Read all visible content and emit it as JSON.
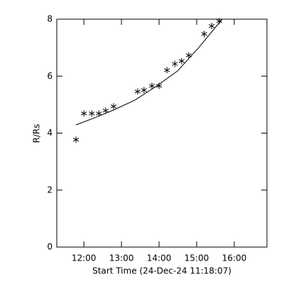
{
  "chart_data": {
    "type": "scatter",
    "xlabel": "Start Time (24-Dec-24 11:18:07)",
    "ylabel": "R/Rs",
    "xlim": [
      11.28,
      16.87
    ],
    "ylim": [
      0,
      8
    ],
    "xticks": [
      {
        "value": 12,
        "label": "12:00"
      },
      {
        "value": 13,
        "label": "13:00"
      },
      {
        "value": 14,
        "label": "14:00"
      },
      {
        "value": 15,
        "label": "15:00"
      },
      {
        "value": 16,
        "label": "16:00"
      }
    ],
    "yticks": [
      0,
      2,
      4,
      6,
      8
    ],
    "color": "#000000",
    "points": {
      "marker": "asterisk",
      "x": [
        11.79,
        12.0,
        12.21,
        12.4,
        12.58,
        12.79,
        13.43,
        13.6,
        13.81,
        14.0,
        14.21,
        14.42,
        14.6,
        14.79,
        15.2,
        15.4,
        15.6
      ],
      "values": [
        3.77,
        4.69,
        4.69,
        4.69,
        4.79,
        4.94,
        5.46,
        5.51,
        5.66,
        5.66,
        6.21,
        6.43,
        6.53,
        6.73,
        7.48,
        7.76,
        7.93
      ]
    },
    "fit": {
      "x": [
        11.79,
        12.23,
        12.79,
        13.36,
        13.92,
        14.49,
        15.06,
        15.68
      ],
      "values": [
        4.29,
        4.51,
        4.81,
        5.16,
        5.64,
        6.18,
        7.01,
        8.0
      ]
    }
  }
}
